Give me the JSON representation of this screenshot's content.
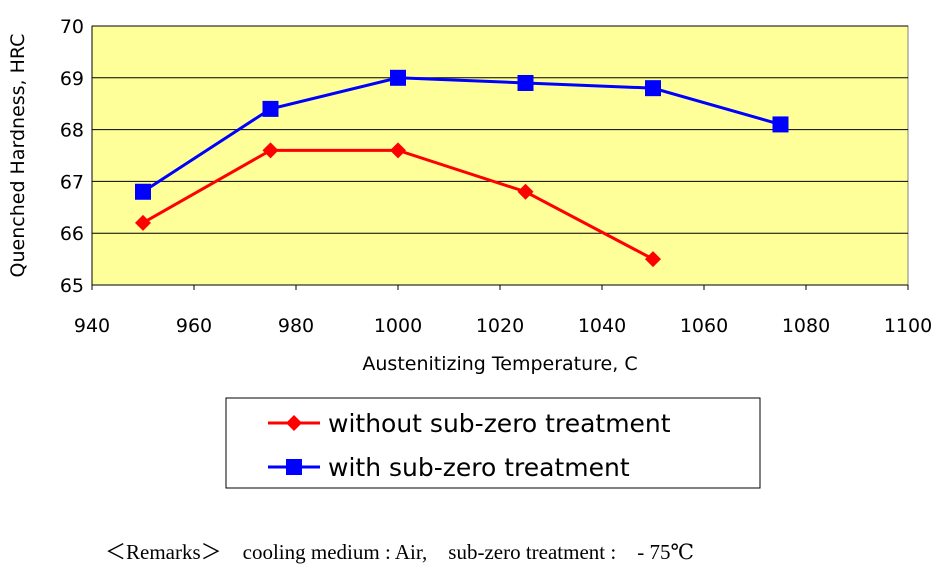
{
  "chart_data": {
    "type": "line",
    "xlabel": "Austenitizing Temperature, C",
    "ylabel": "Quenched Hardness, HRC",
    "xlim": [
      940,
      1100
    ],
    "ylim": [
      65,
      70
    ],
    "xticks": [
      940,
      960,
      980,
      1000,
      1020,
      1040,
      1060,
      1080,
      1100
    ],
    "yticks": [
      65,
      66,
      67,
      68,
      69,
      70
    ],
    "grid": "horizontal",
    "plot_background": "#FFFF99",
    "legend_position": "bottom",
    "series": [
      {
        "name": "without sub-zero treatment",
        "color": "#FF0000",
        "marker": "diamond",
        "x": [
          950,
          975,
          1000,
          1025,
          1050
        ],
        "y": [
          66.2,
          67.6,
          67.6,
          66.8,
          65.5
        ]
      },
      {
        "name": "with sub-zero treatment",
        "color": "#0000FF",
        "marker": "square",
        "x": [
          950,
          975,
          1000,
          1025,
          1050,
          1075
        ],
        "y": [
          66.8,
          68.4,
          69.0,
          68.9,
          68.8,
          68.1
        ]
      }
    ]
  },
  "remarks": "＜Remarks＞　cooling medium : Air,　sub-zero treatment :　- 75℃"
}
